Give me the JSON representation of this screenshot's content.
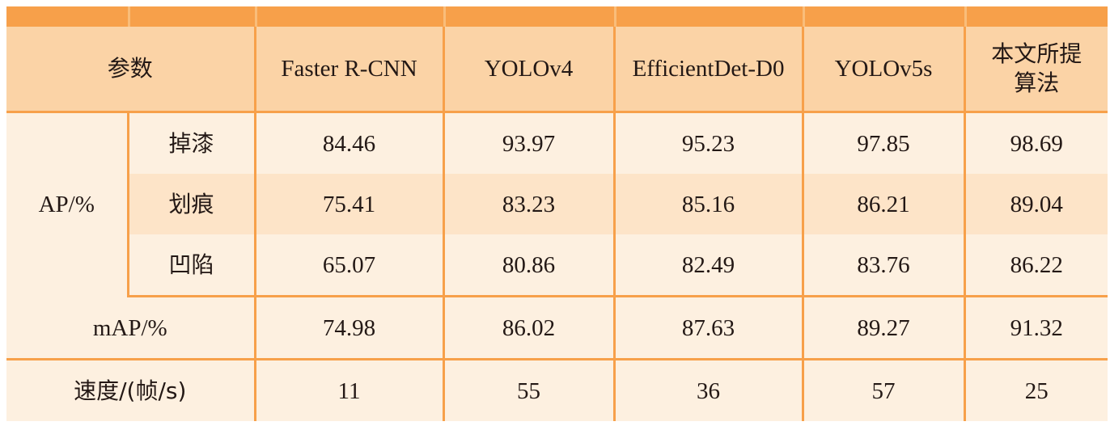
{
  "header": {
    "param": "参数",
    "columns": [
      "Faster R-CNN",
      "YOLOv4",
      "EfficientDet-D0",
      "YOLOv5s"
    ],
    "proposed_line1": "本文所提",
    "proposed_line2": "算法"
  },
  "ap_group": {
    "label": "AP/%",
    "rows": [
      {
        "name": "掉漆",
        "values": [
          "84.46",
          "93.97",
          "95.23",
          "97.85",
          "98.69"
        ]
      },
      {
        "name": "划痕",
        "values": [
          "75.41",
          "83.23",
          "85.16",
          "86.21",
          "89.04"
        ]
      },
      {
        "name": "凹陷",
        "values": [
          "65.07",
          "80.86",
          "82.49",
          "83.76",
          "86.22"
        ]
      }
    ]
  },
  "map_row": {
    "label": "mAP/%",
    "values": [
      "74.98",
      "86.02",
      "87.63",
      "89.27",
      "91.32"
    ]
  },
  "speed_row": {
    "label": "速度/(帧/s)",
    "values": [
      "11",
      "55",
      "36",
      "57",
      "25"
    ]
  }
}
